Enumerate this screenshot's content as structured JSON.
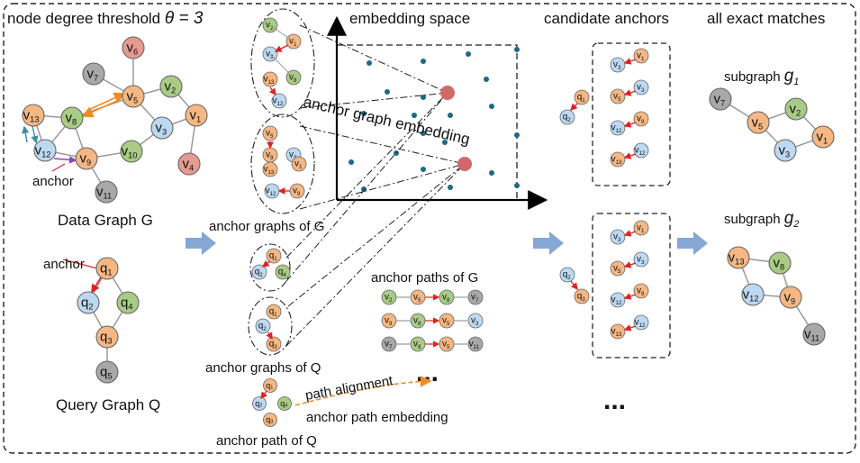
{
  "colors": {
    "orange": "#F5B783",
    "blue": "#BDD9F2",
    "green": "#A9CB85",
    "pink": "#E69A90",
    "gray": "#A8A8A8",
    "dot": "#1B6A86",
    "anchor_dot": "#D06A6A",
    "arrow_big": "#84A7D6",
    "red_arrow": "#E02020",
    "orange_dashed": "#F08A24"
  },
  "labels": {
    "threshold_prefix": "node degree threshold ",
    "threshold_theta": "θ = 3",
    "embedding_space": "embedding space",
    "candidate_anchors": "candidate anchors",
    "all_exact_matches": "all exact matches",
    "data_graph": "Data Graph G",
    "query_graph": "Query Graph Q",
    "anchor_label": "anchor",
    "anchor_graphs_G": "anchor graphs of G",
    "anchor_graphs_Q": "anchor graphs of Q",
    "anchor_paths_G": "anchor paths of G",
    "anchor_path_Q": "anchor path of Q",
    "anchor_graph_embedding": "anchor graph embedding",
    "path_alignment": "path alignment",
    "anchor_path_embedding": "anchor path embedding",
    "subgraph_1_prefix": "subgraph ",
    "subgraph_1_name": "g",
    "subgraph_1_sub": "1",
    "subgraph_2_prefix": "subgraph ",
    "subgraph_2_name": "g",
    "subgraph_2_sub": "2",
    "ellipsis": "..."
  },
  "data_graph": {
    "nodes": [
      {
        "id": "v6",
        "label": "v",
        "sub": "6",
        "color": "pink"
      },
      {
        "id": "v7",
        "label": "v",
        "sub": "7",
        "color": "gray"
      },
      {
        "id": "v5",
        "label": "v",
        "sub": "5",
        "color": "orange"
      },
      {
        "id": "v2",
        "label": "v",
        "sub": "2",
        "color": "green"
      },
      {
        "id": "v13",
        "label": "v",
        "sub": "13",
        "color": "orange"
      },
      {
        "id": "v8",
        "label": "v",
        "sub": "8",
        "color": "green"
      },
      {
        "id": "v3",
        "label": "v",
        "sub": "3",
        "color": "blue"
      },
      {
        "id": "v1",
        "label": "v",
        "sub": "1",
        "color": "orange"
      },
      {
        "id": "v12",
        "label": "v",
        "sub": "12",
        "color": "blue"
      },
      {
        "id": "v9",
        "label": "v",
        "sub": "9",
        "color": "orange"
      },
      {
        "id": "v10",
        "label": "v",
        "sub": "10",
        "color": "green"
      },
      {
        "id": "v4",
        "label": "v",
        "sub": "4",
        "color": "pink"
      },
      {
        "id": "v11",
        "label": "v",
        "sub": "11",
        "color": "gray"
      }
    ]
  },
  "query_graph": {
    "nodes": [
      {
        "id": "q1",
        "label": "q",
        "sub": "1",
        "color": "orange"
      },
      {
        "id": "q2",
        "label": "q",
        "sub": "2",
        "color": "blue"
      },
      {
        "id": "q4",
        "label": "q",
        "sub": "4",
        "color": "green"
      },
      {
        "id": "q3",
        "label": "q",
        "sub": "3",
        "color": "orange"
      },
      {
        "id": "q5",
        "label": "q",
        "sub": "5",
        "color": "gray"
      }
    ]
  },
  "anchor_paths_G": [
    [
      "v2",
      "v5",
      "v8",
      "v7"
    ],
    [
      "v9",
      "v8",
      "v5",
      "v3"
    ],
    [
      "v7",
      "v8",
      "v5",
      "v11"
    ]
  ],
  "candidate_anchor_pairs_top": [
    [
      "v3",
      "v1"
    ],
    [
      "v5",
      "v3"
    ],
    [
      "v12",
      "v9"
    ],
    [
      "v13",
      "v12"
    ]
  ],
  "candidate_anchor_pairs_bottom": [
    [
      "v3",
      "v1"
    ],
    [
      "v5",
      "v3"
    ],
    [
      "v12",
      "v9"
    ],
    [
      "v13",
      "v12"
    ]
  ],
  "subgraph_1_nodes": [
    {
      "id": "v7",
      "sub": "7",
      "color": "gray"
    },
    {
      "id": "v5",
      "sub": "5",
      "color": "orange"
    },
    {
      "id": "v2",
      "sub": "2",
      "color": "green"
    },
    {
      "id": "v3",
      "sub": "3",
      "color": "blue"
    },
    {
      "id": "v1",
      "sub": "1",
      "color": "orange"
    }
  ],
  "subgraph_2_nodes": [
    {
      "id": "v13",
      "sub": "13",
      "color": "orange"
    },
    {
      "id": "v8",
      "sub": "8",
      "color": "green"
    },
    {
      "id": "v12",
      "sub": "12",
      "color": "blue"
    },
    {
      "id": "v9",
      "sub": "9",
      "color": "orange"
    },
    {
      "id": "v11",
      "sub": "11",
      "color": "gray"
    }
  ]
}
